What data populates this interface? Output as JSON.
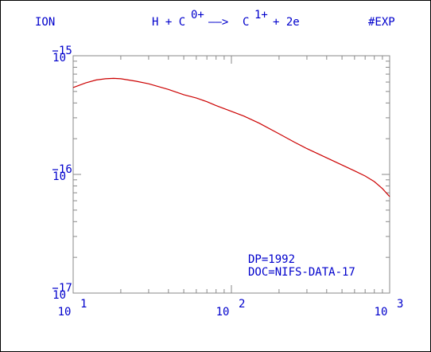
{
  "header": {
    "left": "ION",
    "reaction": {
      "reactant": "H + C",
      "reactant_charge": "0+",
      "arrow": "——>",
      "product": "C",
      "product_charge": "1+",
      "rest": "+ 2e"
    },
    "right": "#EXP"
  },
  "annotations": [
    "DP=1992",
    "DOC=NIFS-DATA-17"
  ],
  "chart_data": {
    "type": "line",
    "x_scale": "log",
    "y_scale": "log",
    "xlim": [
      10,
      1000
    ],
    "ylim": [
      1e-17,
      1e-15
    ],
    "x_ticks": [
      {
        "value": 10,
        "base": "10",
        "exp": "1"
      },
      {
        "value": 100,
        "base": "10",
        "exp": "2"
      },
      {
        "value": 1000,
        "base": "10",
        "exp": "3"
      }
    ],
    "y_ticks": [
      {
        "value": 1e-15,
        "base": "10",
        "exp": "15"
      },
      {
        "value": 1e-16,
        "base": "10",
        "exp": "16"
      },
      {
        "value": 1e-17,
        "base": "10",
        "exp": "17"
      }
    ],
    "series": [
      {
        "color": "#cc0000",
        "x": [
          10,
          12,
          14,
          16,
          18,
          20,
          25,
          30,
          40,
          50,
          60,
          70,
          80,
          100,
          120,
          150,
          200,
          250,
          300,
          400,
          500,
          600,
          700,
          800,
          900,
          1000
        ],
        "y": [
          5.4e-16,
          5.9e-16,
          6.25e-16,
          6.4e-16,
          6.45e-16,
          6.4e-16,
          6.1e-16,
          5.8e-16,
          5.2e-16,
          4.7e-16,
          4.4e-16,
          4.1e-16,
          3.8e-16,
          3.4e-16,
          3.1e-16,
          2.7e-16,
          2.2e-16,
          1.87e-16,
          1.65e-16,
          1.38e-16,
          1.2e-16,
          1.07e-16,
          9.7e-17,
          8.7e-17,
          7.6e-17,
          6.5e-17
        ]
      }
    ],
    "annotation_color": "#0000cc"
  }
}
